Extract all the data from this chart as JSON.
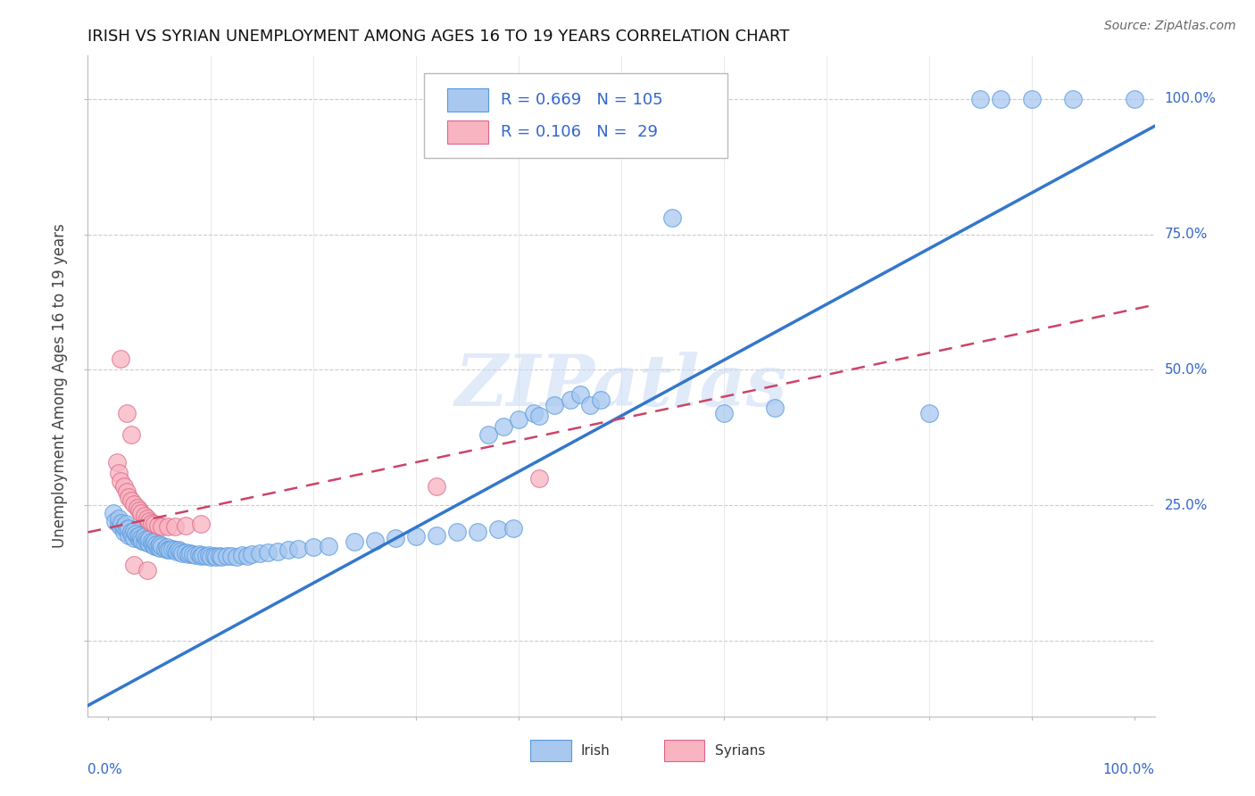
{
  "title": "IRISH VS SYRIAN UNEMPLOYMENT AMONG AGES 16 TO 19 YEARS CORRELATION CHART",
  "source": "Source: ZipAtlas.com",
  "ylabel": "Unemployment Among Ages 16 to 19 years",
  "irish_color": "#a8c8f0",
  "irish_edge": "#5599dd",
  "syrian_color": "#f8b4c0",
  "syrian_edge": "#dd6688",
  "irish_R": 0.669,
  "irish_N": 105,
  "syrian_R": 0.106,
  "syrian_N": 29,
  "legend_label_color": "#3366cc",
  "watermark": "ZIPatlas",
  "irish_line_color": "#3377cc",
  "syrian_line_color": "#cc4466",
  "background_color": "#ffffff",
  "grid_color": "#cccccc",
  "irish_line_x0": -0.02,
  "irish_line_x1": 1.02,
  "irish_line_y0": -0.12,
  "irish_line_y1": 0.95,
  "syrian_line_x0": -0.02,
  "syrian_line_x1": 1.02,
  "syrian_line_y0": 0.2,
  "syrian_line_y1": 0.62,
  "ytick_vals": [
    0.0,
    0.25,
    0.5,
    0.75,
    1.0
  ],
  "xlim": [
    -0.02,
    1.02
  ],
  "ylim": [
    -0.14,
    1.08
  ]
}
